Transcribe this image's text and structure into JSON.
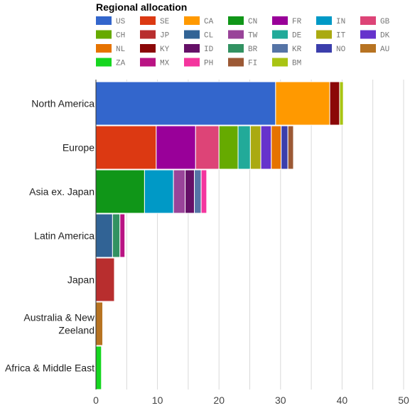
{
  "chart_data": {
    "type": "bar",
    "orientation": "horizontal",
    "stacked": true,
    "title": "Regional allocation",
    "xlabel": "",
    "ylabel": "",
    "xlim": [
      0,
      50
    ],
    "x_ticks": [
      "0",
      "10",
      "20",
      "30",
      "40",
      "50"
    ],
    "grid": true,
    "legend_position": "top",
    "categories": [
      "North America",
      "Europe",
      "Asia ex. Japan",
      "Latin America",
      "Japan",
      "Australia & New Zeeland",
      "Africa & Middle East"
    ],
    "category_lines": [
      [
        "North America"
      ],
      [
        "Europe"
      ],
      [
        "Asia ex. Japan"
      ],
      [
        "Latin America"
      ],
      [
        "Japan"
      ],
      [
        "Australia & New",
        "Zeeland"
      ],
      [
        "Africa & Middle East"
      ]
    ],
    "series": [
      {
        "name": "US",
        "color": "#3366cc",
        "values": [
          29.2,
          0,
          0,
          0,
          0,
          0,
          0
        ]
      },
      {
        "name": "SE",
        "color": "#dc3912",
        "values": [
          0,
          9.8,
          0,
          0,
          0,
          0,
          0
        ]
      },
      {
        "name": "CA",
        "color": "#ff9900",
        "values": [
          8.8,
          0,
          0,
          0,
          0,
          0,
          0
        ]
      },
      {
        "name": "CN",
        "color": "#109618",
        "values": [
          0,
          0,
          7.9,
          0,
          0,
          0,
          0
        ]
      },
      {
        "name": "FR",
        "color": "#990099",
        "values": [
          0,
          6.4,
          0,
          0,
          0,
          0,
          0
        ]
      },
      {
        "name": "IN",
        "color": "#0099c6",
        "values": [
          0,
          0,
          4.7,
          0,
          0,
          0,
          0
        ]
      },
      {
        "name": "GB",
        "color": "#dd4477",
        "values": [
          0,
          3.8,
          0,
          0,
          0,
          0,
          0
        ]
      },
      {
        "name": "CH",
        "color": "#66aa00",
        "values": [
          0,
          3.1,
          0,
          0,
          0,
          0,
          0
        ]
      },
      {
        "name": "JP",
        "color": "#b82e2e",
        "values": [
          0,
          0,
          0,
          0,
          3.0,
          0,
          0
        ]
      },
      {
        "name": "CL",
        "color": "#316395",
        "values": [
          0,
          0,
          0,
          2.7,
          0,
          0,
          0
        ]
      },
      {
        "name": "TW",
        "color": "#994499",
        "values": [
          0,
          0,
          1.9,
          0,
          0,
          0,
          0
        ]
      },
      {
        "name": "DE",
        "color": "#22aa99",
        "values": [
          0,
          2.0,
          0,
          0,
          0,
          0,
          0
        ]
      },
      {
        "name": "IT",
        "color": "#aaaa11",
        "values": [
          0,
          1.7,
          0,
          0,
          0,
          0,
          0
        ]
      },
      {
        "name": "DK",
        "color": "#6633cc",
        "values": [
          0,
          1.7,
          0,
          0,
          0,
          0,
          0
        ]
      },
      {
        "name": "NL",
        "color": "#e67300",
        "values": [
          0,
          1.6,
          0,
          0,
          0,
          0,
          0
        ]
      },
      {
        "name": "KY",
        "color": "#8b0707",
        "values": [
          1.6,
          0,
          0,
          0,
          0,
          0,
          0
        ]
      },
      {
        "name": "ID",
        "color": "#651067",
        "values": [
          0,
          0,
          1.5,
          0,
          0,
          0,
          0
        ]
      },
      {
        "name": "BR",
        "color": "#329262",
        "values": [
          0,
          0,
          0,
          1.2,
          0,
          0,
          0
        ]
      },
      {
        "name": "KR",
        "color": "#5574a6",
        "values": [
          0,
          0,
          1.1,
          0,
          0,
          0,
          0
        ]
      },
      {
        "name": "NO",
        "color": "#3b3eac",
        "values": [
          0,
          1.1,
          0,
          0,
          0,
          0,
          0
        ]
      },
      {
        "name": "AU",
        "color": "#b77322",
        "values": [
          0,
          0,
          0,
          0,
          0,
          1.1,
          0
        ]
      },
      {
        "name": "ZA",
        "color": "#16d620",
        "values": [
          0,
          0,
          0,
          0,
          0,
          0,
          0.9
        ]
      },
      {
        "name": "MX",
        "color": "#b91383",
        "values": [
          0,
          0,
          0,
          0.8,
          0,
          0,
          0
        ]
      },
      {
        "name": "PH",
        "color": "#f4359e",
        "values": [
          0,
          0,
          0.9,
          0,
          0,
          0,
          0
        ]
      },
      {
        "name": "FI",
        "color": "#9c5935",
        "values": [
          0,
          0.9,
          0,
          0,
          0,
          0,
          0
        ]
      },
      {
        "name": "BM",
        "color": "#a9c413",
        "values": [
          0.6,
          0,
          0,
          0,
          0,
          0,
          0
        ]
      }
    ]
  }
}
